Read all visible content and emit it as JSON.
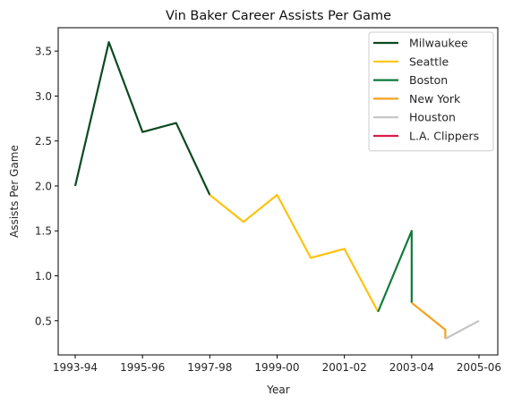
{
  "chart_data": {
    "type": "line",
    "title": "Vin Baker Career Assists Per Game",
    "xlabel": "Year",
    "ylabel": "Assists Per Game",
    "x_tick_labels": [
      "1993-94",
      "1995-96",
      "1997-98",
      "1999-00",
      "2001-02",
      "2003-04",
      "2005-06"
    ],
    "y_ticks": [
      0.5,
      1.0,
      1.5,
      2.0,
      2.5,
      3.0,
      3.5
    ],
    "y_tick_labels": [
      "0.5",
      "1.0",
      "1.5",
      "2.0",
      "2.5",
      "3.0",
      "3.5"
    ],
    "xlim": [
      "1993-94",
      "2005-06"
    ],
    "ylim": [
      0.12,
      3.76
    ],
    "grid": false,
    "legend_position": "top-right",
    "series": [
      {
        "name": "Milwaukee",
        "color": "#0b4a1f",
        "points": [
          {
            "x": "1993-94",
            "y": 2.0
          },
          {
            "x": "1994-95",
            "y": 3.6
          },
          {
            "x": "1995-96",
            "y": 2.6
          },
          {
            "x": "1996-97",
            "y": 2.7
          },
          {
            "x": "1997-98",
            "y": 1.9
          }
        ]
      },
      {
        "name": "Seattle",
        "color": "#ffc20e",
        "points": [
          {
            "x": "1997-98",
            "y": 1.9
          },
          {
            "x": "1998-99",
            "y": 1.6
          },
          {
            "x": "1999-00",
            "y": 1.9
          },
          {
            "x": "2000-01",
            "y": 1.2
          },
          {
            "x": "2001-02",
            "y": 1.3
          },
          {
            "x": "2002-03",
            "y": 0.6
          }
        ]
      },
      {
        "name": "Boston",
        "color": "#0f7a3b",
        "points": [
          {
            "x": "2002-03",
            "y": 0.6
          },
          {
            "x": "2003-04",
            "y": 1.5
          },
          {
            "x": "2003-04",
            "y": 0.7
          }
        ]
      },
      {
        "name": "New York",
        "color": "#f5a11e",
        "points": [
          {
            "x": "2003-04",
            "y": 0.7
          },
          {
            "x": "2004-05",
            "y": 0.4
          },
          {
            "x": "2004-05",
            "y": 0.3
          }
        ]
      },
      {
        "name": "Houston",
        "color": "#c4c4c4",
        "points": [
          {
            "x": "2004-05",
            "y": 0.3
          },
          {
            "x": "2005-06",
            "y": 0.5
          }
        ]
      },
      {
        "name": "L.A. Clippers",
        "color": "#d91c4a",
        "points": [
          {
            "x": "2005-06",
            "y": 0.5
          }
        ]
      }
    ]
  }
}
